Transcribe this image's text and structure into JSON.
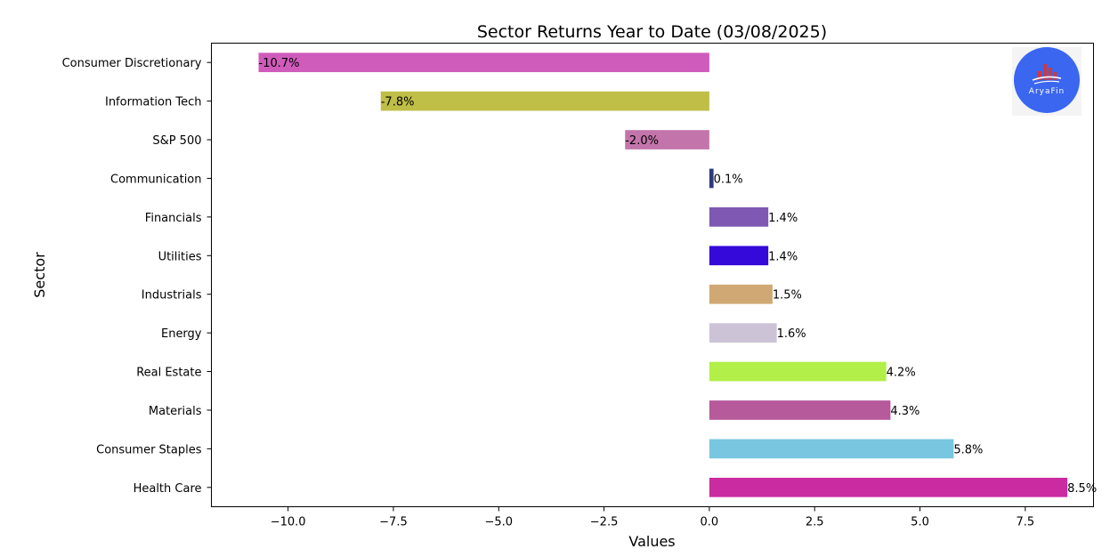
{
  "chart_data": {
    "type": "bar",
    "orientation": "horizontal",
    "title": "Sector Returns Year to Date (03/08/2025)",
    "xlabel": "Values",
    "ylabel": "Sector",
    "xlim": [
      -11.82,
      9.12
    ],
    "xticks": [
      -10.0,
      -7.5,
      -5.0,
      -2.5,
      0.0,
      2.5,
      5.0,
      7.5
    ],
    "xtick_labels": [
      "−10.0",
      "−7.5",
      "−5.0",
      "−2.5",
      "0.0",
      "2.5",
      "5.0",
      "7.5"
    ],
    "grid": false,
    "categories": [
      "Consumer Discretionary",
      "Information Tech",
      "S&P 500",
      "Communication",
      "Financials",
      "Utilities",
      "Industrials",
      "Energy",
      "Real Estate",
      "Materials",
      "Consumer Staples",
      "Health Care"
    ],
    "values": [
      -10.7,
      -7.8,
      -2.0,
      0.1,
      1.4,
      1.4,
      1.5,
      1.6,
      4.2,
      4.3,
      5.8,
      8.5
    ],
    "data_labels": [
      "-10.7%",
      "-7.8%",
      "-2.0%",
      "0.1%",
      "1.4%",
      "1.4%",
      "1.5%",
      "1.6%",
      "4.2%",
      "4.3%",
      "5.8%",
      "8.5%"
    ],
    "colors": [
      "#cf5bba",
      "#bfbe46",
      "#c375ab",
      "#2d3a80",
      "#7e58b2",
      "#3409d9",
      "#d0a873",
      "#ccc3d6",
      "#b2ef48",
      "#b65a9c",
      "#78c6df",
      "#cb2ba0"
    ]
  },
  "logo": {
    "text": "AryaFin",
    "circle_color": "#3a66f0",
    "accent_color": "#d0393b"
  }
}
